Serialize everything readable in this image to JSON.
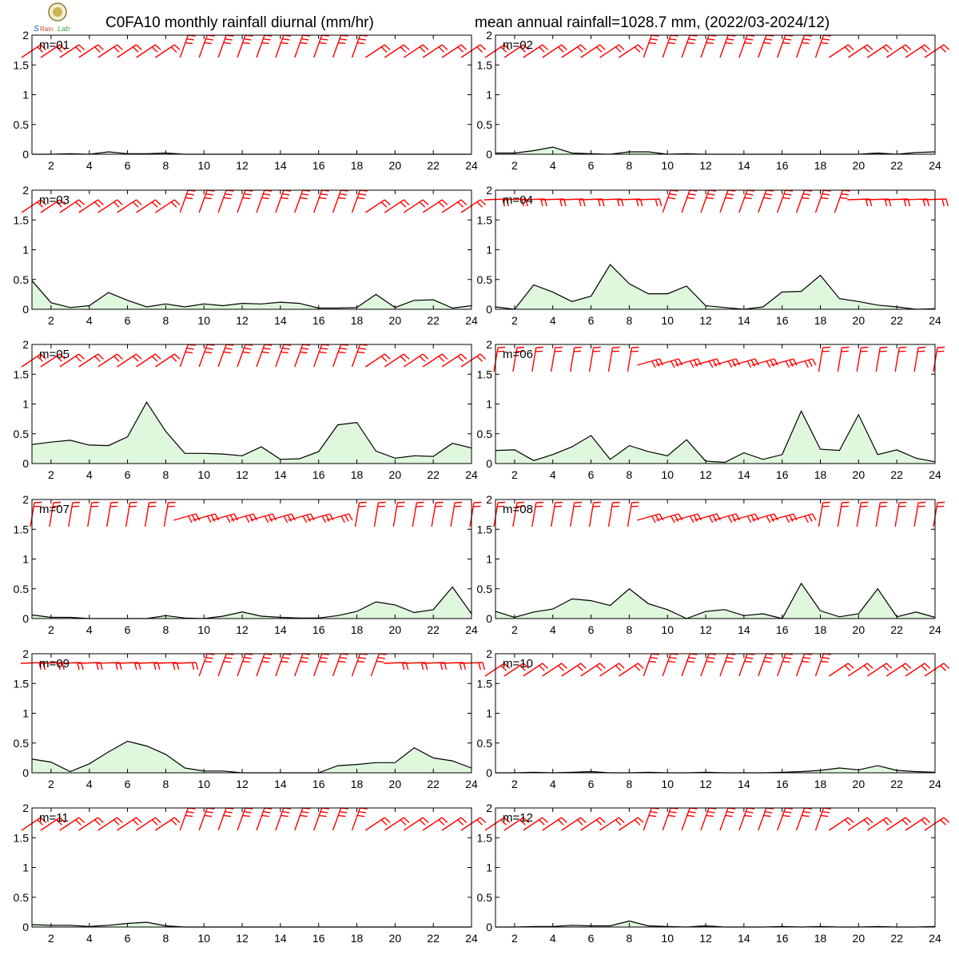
{
  "title": {
    "left": "C0FA10 monthly rainfall diurnal (mm/hr)",
    "right": "mean annual rainfall=1028.7 mm, (2022/03-2024/12)"
  },
  "logo": {
    "text": "Lab"
  },
  "colors": {
    "line": "#000000",
    "fill": "#dff7dc",
    "wind": "#ff0000",
    "frame": "#000000"
  },
  "axes": {
    "x_ticks": [
      2,
      4,
      6,
      8,
      10,
      12,
      14,
      16,
      18,
      20,
      22,
      24
    ],
    "y_ticks": [
      0,
      0.5,
      1,
      1.5,
      2
    ],
    "y_tick_labels": [
      "0",
      "0.5",
      "1",
      "1.5",
      "2"
    ],
    "x_tick_labels": [
      "2",
      "4",
      "6",
      "8",
      "10",
      "12",
      "14",
      "16",
      "18",
      "20",
      "22",
      "24"
    ],
    "xlim": [
      1,
      24
    ],
    "ylim": [
      0,
      2
    ]
  },
  "chart_data": [
    {
      "type": "area",
      "panel_label": "m=01",
      "x": [
        1,
        2,
        3,
        4,
        5,
        6,
        7,
        8,
        9,
        10,
        11,
        12,
        13,
        14,
        15,
        16,
        17,
        18,
        19,
        20,
        21,
        22,
        23,
        24
      ],
      "values": [
        0.0,
        0.0,
        0.01,
        0.0,
        0.04,
        0.01,
        0.01,
        0.02,
        0.0,
        0.0,
        0.0,
        0.0,
        0.0,
        0.0,
        0.0,
        0.0,
        0.0,
        0.0,
        0.0,
        0.0,
        0.0,
        0.0,
        0.0,
        0.0
      ],
      "wind_barbs": "wsw"
    },
    {
      "type": "area",
      "panel_label": "m=02",
      "x": [
        1,
        2,
        3,
        4,
        5,
        6,
        7,
        8,
        9,
        10,
        11,
        12,
        13,
        14,
        15,
        16,
        17,
        18,
        19,
        20,
        21,
        22,
        23,
        24
      ],
      "values": [
        0.02,
        0.02,
        0.06,
        0.12,
        0.02,
        0.01,
        0.0,
        0.04,
        0.04,
        0.0,
        0.01,
        0.0,
        0.0,
        0.0,
        0.0,
        0.0,
        0.0,
        0.0,
        0.0,
        0.0,
        0.02,
        0.0,
        0.03,
        0.04
      ],
      "wind_barbs": "wsw"
    },
    {
      "type": "area",
      "panel_label": "m=03",
      "x": [
        1,
        2,
        3,
        4,
        5,
        6,
        7,
        8,
        9,
        10,
        11,
        12,
        13,
        14,
        15,
        16,
        17,
        18,
        19,
        20,
        21,
        22,
        23,
        24
      ],
      "values": [
        0.48,
        0.11,
        0.03,
        0.06,
        0.28,
        0.15,
        0.04,
        0.09,
        0.04,
        0.09,
        0.06,
        0.1,
        0.09,
        0.12,
        0.1,
        0.02,
        0.02,
        0.03,
        0.25,
        0.03,
        0.15,
        0.16,
        0.02,
        0.06
      ],
      "wind_barbs": "wsw"
    },
    {
      "type": "area",
      "panel_label": "m=04",
      "x": [
        1,
        2,
        3,
        4,
        5,
        6,
        7,
        8,
        9,
        10,
        11,
        12,
        13,
        14,
        15,
        16,
        17,
        18,
        19,
        20,
        21,
        22,
        23,
        24
      ],
      "values": [
        0.04,
        0.0,
        0.41,
        0.29,
        0.13,
        0.22,
        0.75,
        0.43,
        0.26,
        0.26,
        0.39,
        0.06,
        0.03,
        0.0,
        0.04,
        0.29,
        0.3,
        0.57,
        0.18,
        0.13,
        0.07,
        0.04,
        0.0,
        0.01
      ],
      "wind_barbs": "mixed"
    },
    {
      "type": "area",
      "panel_label": "m=05",
      "x": [
        1,
        2,
        3,
        4,
        5,
        6,
        7,
        8,
        9,
        10,
        11,
        12,
        13,
        14,
        15,
        16,
        17,
        18,
        19,
        20,
        21,
        22,
        23,
        24
      ],
      "values": [
        0.32,
        0.36,
        0.39,
        0.31,
        0.3,
        0.45,
        1.03,
        0.54,
        0.17,
        0.17,
        0.16,
        0.13,
        0.28,
        0.07,
        0.08,
        0.2,
        0.65,
        0.69,
        0.21,
        0.09,
        0.13,
        0.12,
        0.34,
        0.26
      ],
      "wind_barbs": "wsw"
    },
    {
      "type": "area",
      "panel_label": "m=06",
      "x": [
        1,
        2,
        3,
        4,
        5,
        6,
        7,
        8,
        9,
        10,
        11,
        12,
        13,
        14,
        15,
        16,
        17,
        18,
        19,
        20,
        21,
        22,
        23,
        24
      ],
      "values": [
        0.22,
        0.23,
        0.05,
        0.15,
        0.28,
        0.47,
        0.07,
        0.3,
        0.2,
        0.13,
        0.4,
        0.04,
        0.02,
        0.18,
        0.07,
        0.15,
        0.88,
        0.24,
        0.22,
        0.82,
        0.15,
        0.23,
        0.09,
        0.03
      ],
      "wind_barbs": "south"
    },
    {
      "type": "area",
      "panel_label": "m=07",
      "x": [
        1,
        2,
        3,
        4,
        5,
        6,
        7,
        8,
        9,
        10,
        11,
        12,
        13,
        14,
        15,
        16,
        17,
        18,
        19,
        20,
        21,
        22,
        23,
        24
      ],
      "values": [
        0.06,
        0.02,
        0.02,
        0.0,
        0.0,
        0.0,
        0.0,
        0.05,
        0.01,
        0.0,
        0.04,
        0.11,
        0.04,
        0.02,
        0.01,
        0.01,
        0.05,
        0.12,
        0.28,
        0.23,
        0.1,
        0.15,
        0.53,
        0.08
      ],
      "wind_barbs": "south"
    },
    {
      "type": "area",
      "panel_label": "m=08",
      "x": [
        1,
        2,
        3,
        4,
        5,
        6,
        7,
        8,
        9,
        10,
        11,
        12,
        13,
        14,
        15,
        16,
        17,
        18,
        19,
        20,
        21,
        22,
        23,
        24
      ],
      "values": [
        0.12,
        0.02,
        0.11,
        0.16,
        0.33,
        0.3,
        0.22,
        0.5,
        0.25,
        0.15,
        0.0,
        0.12,
        0.15,
        0.05,
        0.08,
        0.0,
        0.59,
        0.13,
        0.03,
        0.08,
        0.5,
        0.03,
        0.11,
        0.02
      ],
      "wind_barbs": "south"
    },
    {
      "type": "area",
      "panel_label": "m=09",
      "x": [
        1,
        2,
        3,
        4,
        5,
        6,
        7,
        8,
        9,
        10,
        11,
        12,
        13,
        14,
        15,
        16,
        17,
        18,
        19,
        20,
        21,
        22,
        23,
        24
      ],
      "values": [
        0.23,
        0.18,
        0.02,
        0.15,
        0.35,
        0.53,
        0.45,
        0.31,
        0.08,
        0.03,
        0.03,
        0.0,
        0.0,
        0.0,
        0.0,
        0.0,
        0.12,
        0.14,
        0.17,
        0.17,
        0.42,
        0.25,
        0.2,
        0.08
      ],
      "wind_barbs": "mixed"
    },
    {
      "type": "area",
      "panel_label": "m=10",
      "x": [
        1,
        2,
        3,
        4,
        5,
        6,
        7,
        8,
        9,
        10,
        11,
        12,
        13,
        14,
        15,
        16,
        17,
        18,
        19,
        20,
        21,
        22,
        23,
        24
      ],
      "values": [
        0.0,
        0.0,
        0.01,
        0.0,
        0.01,
        0.02,
        0.0,
        0.0,
        0.01,
        0.0,
        0.0,
        0.01,
        0.0,
        0.0,
        0.0,
        0.01,
        0.02,
        0.04,
        0.08,
        0.05,
        0.12,
        0.04,
        0.02,
        0.01
      ],
      "wind_barbs": "wsw"
    },
    {
      "type": "area",
      "panel_label": "m=11",
      "x": [
        1,
        2,
        3,
        4,
        5,
        6,
        7,
        8,
        9,
        10,
        11,
        12,
        13,
        14,
        15,
        16,
        17,
        18,
        19,
        20,
        21,
        22,
        23,
        24
      ],
      "values": [
        0.04,
        0.03,
        0.03,
        0.01,
        0.03,
        0.06,
        0.08,
        0.02,
        0.0,
        0.0,
        0.0,
        0.0,
        0.0,
        0.0,
        0.0,
        0.0,
        0.0,
        0.0,
        0.0,
        0.0,
        0.0,
        0.0,
        0.0,
        0.0
      ],
      "wind_barbs": "wsw"
    },
    {
      "type": "area",
      "panel_label": "m=12",
      "x": [
        1,
        2,
        3,
        4,
        5,
        6,
        7,
        8,
        9,
        10,
        11,
        12,
        13,
        14,
        15,
        16,
        17,
        18,
        19,
        20,
        21,
        22,
        23,
        24
      ],
      "values": [
        0.0,
        0.0,
        0.01,
        0.01,
        0.03,
        0.02,
        0.02,
        0.1,
        0.02,
        0.01,
        0.0,
        0.02,
        0.0,
        0.0,
        0.0,
        0.01,
        0.0,
        0.01,
        0.0,
        0.0,
        0.01,
        0.0,
        0.0,
        0.01
      ],
      "wind_barbs": "wsw"
    }
  ]
}
